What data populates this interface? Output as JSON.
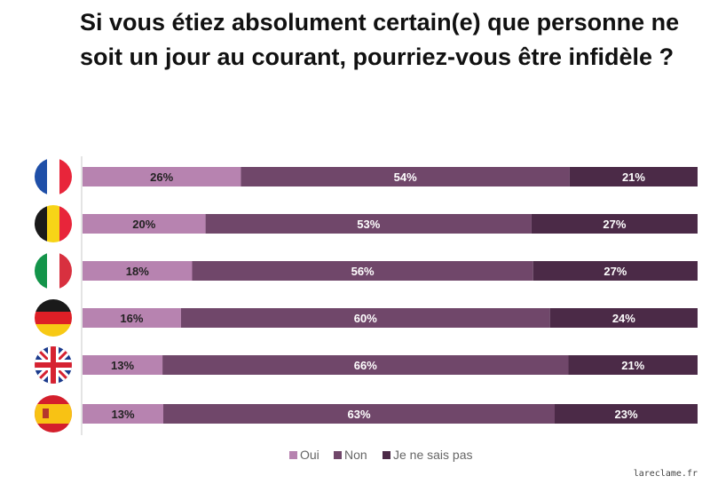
{
  "title": "Si vous étiez absolument certain(e) que personne ne soit un jour au courant, pourriez-vous être infidèle ?",
  "footer": "lareclame.fr",
  "colors": {
    "oui": "#b783b0",
    "non": "#70476a",
    "nsp": "#4b2a47",
    "label_dark": "#222222",
    "label_light": "#ffffff"
  },
  "chart_data": {
    "type": "bar",
    "orientation": "horizontal",
    "stacked": true,
    "categories": [
      "France",
      "Belgique",
      "Italie",
      "Allemagne",
      "Royaume-Uni",
      "Espagne"
    ],
    "category_icons": [
      "flag-france-icon",
      "flag-belgium-icon",
      "flag-italy-icon",
      "flag-germany-icon",
      "flag-uk-icon",
      "flag-spain-icon"
    ],
    "series": [
      {
        "name": "Oui",
        "values": [
          26,
          20,
          18,
          16,
          13,
          13
        ]
      },
      {
        "name": "Non",
        "values": [
          54,
          53,
          56,
          60,
          66,
          63
        ]
      },
      {
        "name": "Je ne sais pas",
        "values": [
          21,
          27,
          27,
          24,
          21,
          23
        ]
      }
    ],
    "value_suffix": "%",
    "legend_position": "bottom"
  }
}
